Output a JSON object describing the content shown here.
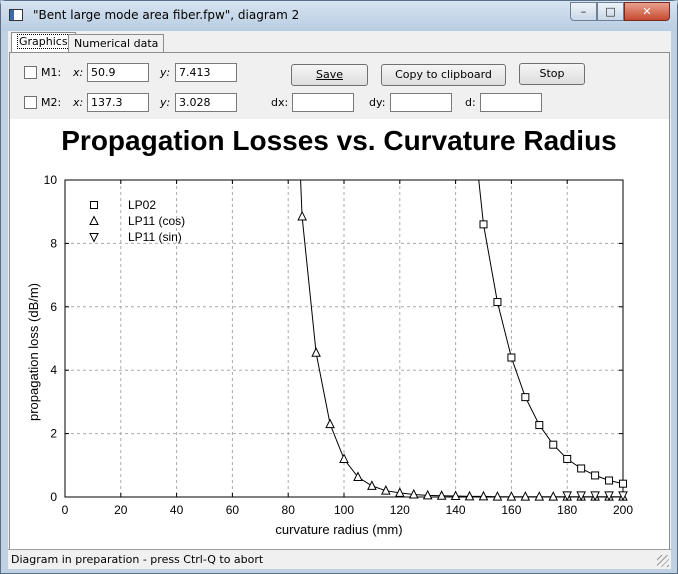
{
  "window": {
    "title": "\"Bent large mode area fiber.fpw\", diagram 2",
    "minimize_label": "–",
    "maximize_label": "□",
    "close_label": "✕"
  },
  "tabs": [
    {
      "label": "Graphics"
    },
    {
      "label": "Numerical data"
    }
  ],
  "markers": {
    "m1": {
      "label": "M1:",
      "x_label": "x:",
      "x_value": "50.9",
      "y_label": "y:",
      "y_value": "7.413"
    },
    "m2": {
      "label": "M2:",
      "x_label": "x:",
      "x_value": "137.3",
      "y_label": "y:",
      "y_value": "3.028"
    },
    "dx_label": "dx:",
    "dx_value": "",
    "dy_label": "dy:",
    "dy_value": "",
    "d_label": "d:",
    "d_value": ""
  },
  "buttons": {
    "save": "Save",
    "copy": "Copy to clipboard",
    "stop": "Stop"
  },
  "status": "Diagram in preparation - press Ctrl-Q to abort",
  "chart_data": {
    "type": "line",
    "title": "Propagation Losses vs. Curvature Radius",
    "xlabel": "curvature radius (mm)",
    "ylabel": "propagation loss (dB/m)",
    "xlim": [
      0,
      200
    ],
    "ylim": [
      0,
      10
    ],
    "xticks": [
      0,
      20,
      40,
      60,
      80,
      100,
      120,
      140,
      160,
      180,
      200
    ],
    "yticks": [
      0,
      2,
      4,
      6,
      8,
      10
    ],
    "grid": true,
    "legend_position": "top-left",
    "series": [
      {
        "name": "LP02",
        "marker": "square",
        "x": [
          150,
          155,
          160,
          165,
          170,
          175,
          180,
          185,
          190,
          195,
          200
        ],
        "y": [
          8.6,
          6.15,
          4.4,
          3.15,
          2.27,
          1.65,
          1.2,
          0.9,
          0.68,
          0.52,
          0.42
        ]
      },
      {
        "name": "LP11 (cos)",
        "marker": "triangle-up",
        "x": [
          85,
          90,
          95,
          100,
          105,
          110,
          115,
          120,
          125,
          130,
          135,
          140,
          145,
          150,
          155,
          160,
          165,
          170,
          175,
          180,
          185,
          190,
          195,
          200
        ],
        "y": [
          8.85,
          4.55,
          2.3,
          1.2,
          0.63,
          0.35,
          0.2,
          0.13,
          0.08,
          0.05,
          0.04,
          0.03,
          0.02,
          0.02,
          0.01,
          0.01,
          0.01,
          0.01,
          0.01,
          0.01,
          0.01,
          0.01,
          0.01,
          0.01
        ]
      },
      {
        "name": "LP11 (sin)",
        "marker": "triangle-down",
        "x": [
          180,
          185,
          190,
          195,
          200
        ],
        "y": [
          0.05,
          0.05,
          0.05,
          0.05,
          0.05
        ]
      }
    ]
  }
}
